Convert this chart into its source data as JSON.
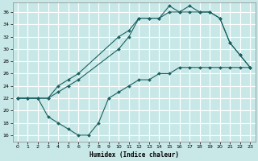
{
  "background_color": "#c8e8e8",
  "grid_color": "#ffffff",
  "line_color": "#1a6060",
  "xlabel": "Humidex (Indice chaleur)",
  "xlim": [
    -0.5,
    23.5
  ],
  "ylim": [
    15.0,
    37.5
  ],
  "yticks": [
    16,
    18,
    20,
    22,
    24,
    26,
    28,
    30,
    32,
    34,
    36
  ],
  "xticks": [
    0,
    1,
    2,
    3,
    4,
    5,
    6,
    7,
    8,
    9,
    10,
    11,
    12,
    13,
    14,
    15,
    16,
    17,
    18,
    19,
    20,
    21,
    22,
    23
  ],
  "line1_x": [
    0,
    1,
    2,
    3,
    4,
    5,
    6,
    10,
    11,
    12,
    13,
    14,
    15,
    16,
    17,
    18,
    19,
    20,
    21,
    22,
    23
  ],
  "line1_y": [
    22,
    22,
    22,
    22,
    24,
    25,
    26,
    32,
    33,
    35,
    35,
    35,
    37,
    36,
    37,
    36,
    36,
    35,
    31,
    29,
    27
  ],
  "line2_x": [
    0,
    1,
    2,
    3,
    4,
    5,
    6,
    10,
    11,
    12,
    13,
    14,
    15,
    16,
    17,
    18,
    19,
    20,
    21,
    22,
    23
  ],
  "line2_y": [
    22,
    22,
    22,
    22,
    23,
    24,
    25,
    30,
    32,
    35,
    35,
    35,
    36,
    36,
    36,
    36,
    36,
    35,
    31,
    29,
    27
  ],
  "line3_x": [
    0,
    1,
    2,
    3,
    4,
    5,
    6,
    7,
    8,
    9,
    10,
    11,
    12,
    13,
    14,
    15,
    16,
    17,
    18,
    19,
    20,
    21,
    22,
    23
  ],
  "line3_y": [
    22,
    22,
    22,
    19,
    18,
    17,
    16,
    16,
    18,
    22,
    23,
    24,
    25,
    25,
    26,
    26,
    27,
    27,
    27,
    27,
    27,
    27,
    27,
    27
  ]
}
